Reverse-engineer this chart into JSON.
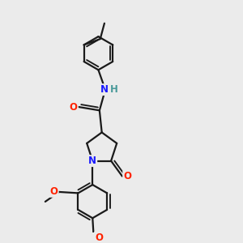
{
  "bg_color": "#ebebeb",
  "bond_color": "#1a1a1a",
  "bond_width": 1.6,
  "atom_colors": {
    "N": "#1a1aff",
    "O": "#ff2200",
    "H": "#4a9a9a",
    "C": "#1a1a1a"
  },
  "font_size_atoms": 8.5,
  "font_size_methyl": 7.5
}
